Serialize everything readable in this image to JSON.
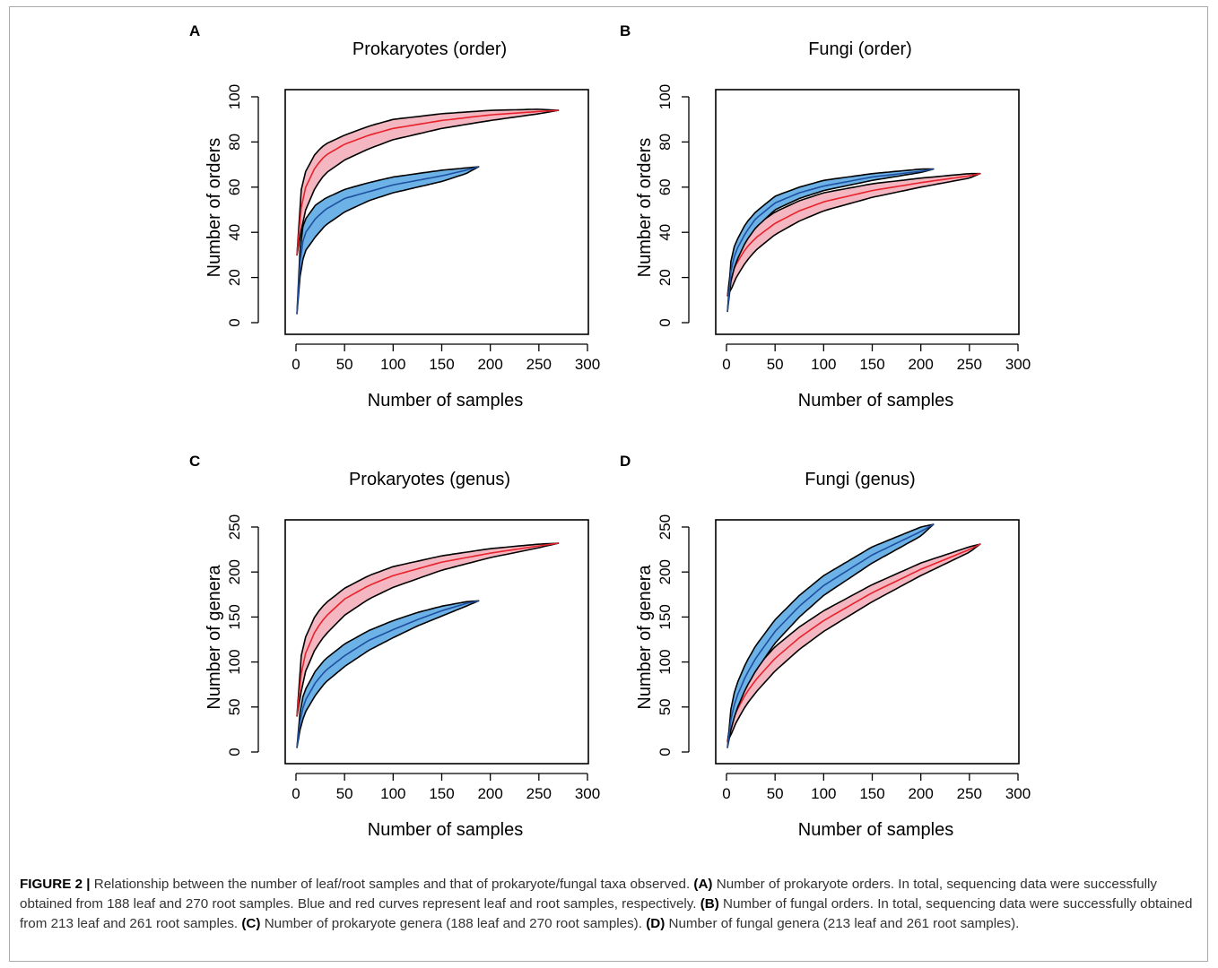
{
  "chart_data": [
    {
      "type": "line",
      "panel": "A",
      "title": "Prokaryotes (order)",
      "xlabel": "Number of samples",
      "ylabel": "Number of orders",
      "xlim": [
        0,
        300
      ],
      "ylim": [
        0,
        100
      ],
      "xticks": [
        0,
        50,
        100,
        150,
        200,
        250,
        300
      ],
      "yticks": [
        0,
        20,
        40,
        60,
        80,
        100
      ],
      "series": [
        {
          "color": "#e8212a",
          "fill": "#f4b6c0",
          "max_x": 270,
          "x": [
            1,
            5,
            10,
            20,
            30,
            50,
            75,
            100,
            150,
            200,
            250,
            270
          ],
          "y": [
            30,
            50,
            60,
            69,
            74,
            79,
            83,
            86,
            89.5,
            92,
            93.5,
            94
          ],
          "lower": [
            30,
            40,
            50,
            60,
            66,
            72,
            77,
            81,
            86,
            89.5,
            92.5,
            94
          ],
          "upper": [
            30,
            58,
            67,
            75,
            79,
            83,
            87,
            90,
            92.5,
            94,
            94.5,
            94
          ]
        },
        {
          "color": "#1f4fa0",
          "fill": "#6cb2e6",
          "max_x": 188,
          "x": [
            1,
            5,
            10,
            20,
            30,
            50,
            75,
            100,
            125,
            150,
            175,
            188
          ],
          "y": [
            4,
            33,
            40,
            46,
            50,
            55,
            58,
            61,
            63,
            65,
            67.5,
            69
          ],
          "lower": [
            4,
            25,
            32,
            38,
            43,
            49,
            54,
            57.5,
            60,
            62.5,
            66,
            69
          ],
          "upper": [
            4,
            40,
            46,
            52,
            55,
            59,
            62,
            64.5,
            66,
            67.5,
            68.5,
            69
          ]
        }
      ]
    },
    {
      "type": "line",
      "panel": "B",
      "title": "Fungi (order)",
      "xlabel": "Number of samples",
      "ylabel": "Number of orders",
      "xlim": [
        0,
        300
      ],
      "ylim": [
        0,
        100
      ],
      "xticks": [
        0,
        50,
        100,
        150,
        200,
        250,
        300
      ],
      "yticks": [
        0,
        20,
        40,
        60,
        80,
        100
      ],
      "series": [
        {
          "color": "#e8212a",
          "fill": "#f4b6c0",
          "max_x": 261,
          "x": [
            1,
            5,
            10,
            20,
            30,
            50,
            75,
            100,
            150,
            200,
            250,
            261
          ],
          "y": [
            12,
            21,
            26,
            33,
            37.5,
            44,
            49.5,
            53.5,
            58.5,
            62,
            65,
            66
          ],
          "lower": [
            12,
            15,
            20,
            27,
            32,
            39,
            45,
            49.5,
            55.5,
            60,
            64,
            66
          ],
          "upper": [
            12,
            27,
            33,
            39,
            43,
            49,
            54,
            57.5,
            61.5,
            64,
            66,
            66
          ]
        },
        {
          "color": "#1f4fa0",
          "fill": "#6cb2e6",
          "max_x": 213,
          "x": [
            1,
            5,
            10,
            20,
            30,
            50,
            75,
            100,
            150,
            200,
            213
          ],
          "y": [
            5,
            25,
            32,
            40,
            46,
            53,
            57.5,
            60.5,
            64.5,
            67,
            68
          ],
          "lower": [
            5,
            20,
            27,
            36,
            42,
            50,
            55,
            58.5,
            63,
            66.5,
            68
          ],
          "upper": [
            5,
            30,
            36,
            44,
            49,
            56,
            60,
            63,
            66,
            68,
            68
          ]
        }
      ]
    },
    {
      "type": "line",
      "panel": "C",
      "title": "Prokaryotes (genus)",
      "xlabel": "Number of samples",
      "ylabel": "Number of genera",
      "xlim": [
        0,
        300
      ],
      "ylim": [
        0,
        250
      ],
      "xticks": [
        0,
        50,
        100,
        150,
        200,
        250,
        300
      ],
      "yticks": [
        0,
        50,
        100,
        150,
        200,
        250
      ],
      "series": [
        {
          "color": "#e8212a",
          "fill": "#f4b6c0",
          "max_x": 270,
          "x": [
            1,
            5,
            10,
            20,
            30,
            50,
            75,
            100,
            150,
            200,
            250,
            270
          ],
          "y": [
            40,
            85,
            110,
            135,
            150,
            170,
            185,
            196,
            211,
            221,
            229,
            232
          ],
          "lower": [
            40,
            65,
            90,
            115,
            130,
            152,
            170,
            183,
            202,
            216,
            227,
            232
          ],
          "upper": [
            40,
            105,
            128,
            152,
            165,
            182,
            196,
            206,
            218,
            226,
            231,
            232
          ]
        },
        {
          "color": "#1f4fa0",
          "fill": "#6cb2e6",
          "max_x": 188,
          "x": [
            1,
            5,
            10,
            20,
            30,
            50,
            75,
            100,
            125,
            150,
            175,
            188
          ],
          "y": [
            5,
            42,
            58,
            77,
            90,
            107,
            124,
            136,
            147,
            157,
            165,
            168
          ],
          "lower": [
            5,
            30,
            45,
            63,
            77,
            95,
            113,
            127,
            140,
            151,
            162,
            168
          ],
          "upper": [
            5,
            55,
            70,
            90,
            103,
            120,
            135,
            146,
            155,
            162,
            167,
            168
          ]
        }
      ]
    },
    {
      "type": "line",
      "panel": "D",
      "title": "Fungi (genus)",
      "xlabel": "Number of samples",
      "ylabel": "Number of genera",
      "xlim": [
        0,
        300
      ],
      "ylim": [
        0,
        250
      ],
      "xticks": [
        0,
        50,
        100,
        150,
        200,
        250,
        300
      ],
      "yticks": [
        0,
        50,
        100,
        150,
        200,
        250
      ],
      "series": [
        {
          "color": "#e8212a",
          "fill": "#f4b6c0",
          "max_x": 261,
          "x": [
            1,
            5,
            10,
            20,
            30,
            50,
            75,
            100,
            150,
            200,
            250,
            261
          ],
          "y": [
            12,
            30,
            45,
            65,
            80,
            104,
            127,
            146,
            177,
            203,
            225,
            231
          ],
          "lower": [
            12,
            20,
            33,
            52,
            66,
            90,
            114,
            134,
            167,
            196,
            222,
            231
          ],
          "upper": [
            12,
            40,
            57,
            78,
            93,
            117,
            139,
            157,
            186,
            210,
            228,
            231
          ]
        },
        {
          "color": "#1f4fa0",
          "fill": "#6cb2e6",
          "max_x": 213,
          "x": [
            1,
            5,
            10,
            20,
            30,
            50,
            75,
            100,
            150,
            200,
            213
          ],
          "y": [
            5,
            40,
            60,
            85,
            104,
            134,
            162,
            185,
            219,
            245,
            253
          ],
          "lower": [
            5,
            27,
            46,
            71,
            90,
            121,
            150,
            174,
            210,
            240,
            253
          ],
          "upper": [
            5,
            53,
            74,
            99,
            118,
            147,
            174,
            196,
            228,
            250,
            253
          ]
        }
      ]
    }
  ],
  "caption": {
    "label": "FIGURE 2 |",
    "intro": " Relationship between the number of leaf/root samples and that of prokaryote/fungal taxa observed. ",
    "a_label": "(A)",
    "a_text": " Number of prokaryote orders. In total, sequencing data were successfully obtained from 188 leaf and 270 root samples. Blue and red curves represent leaf and root samples, respectively. ",
    "b_label": "(B)",
    "b_text": " Number of fungal orders. In total, sequencing data were successfully obtained from 213 leaf and 261 root samples. ",
    "c_label": "(C)",
    "c_text": " Number of prokaryote genera (188 leaf and 270 root samples). ",
    "d_label": "(D)",
    "d_text": " Number of fungal genera (213 leaf and 261 root samples)."
  }
}
